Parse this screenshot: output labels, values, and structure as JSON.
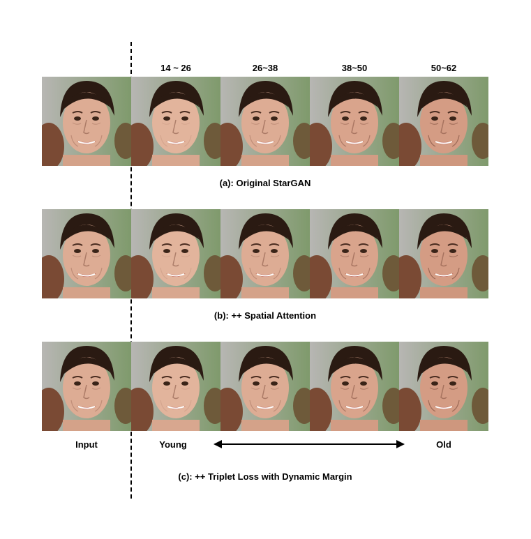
{
  "column_headers": [
    "14 ~ 26",
    "26~38",
    "38~50",
    "50~62"
  ],
  "rows": [
    {
      "caption": "(a): Original StarGAN"
    },
    {
      "caption": "(b): ++ Spatial Attention"
    },
    {
      "caption": "(c): ++ Triplet Loss with Dynamic Margin"
    }
  ],
  "bottom_labels": {
    "input": "Input",
    "young": "Young",
    "old": "Old"
  },
  "colors": {
    "background_left": "#b7b6b3",
    "background_right": "#7f9a6c",
    "skin_young": "#e2b49c",
    "skin_old": "#d49c84",
    "hair": "#2a1a12"
  }
}
